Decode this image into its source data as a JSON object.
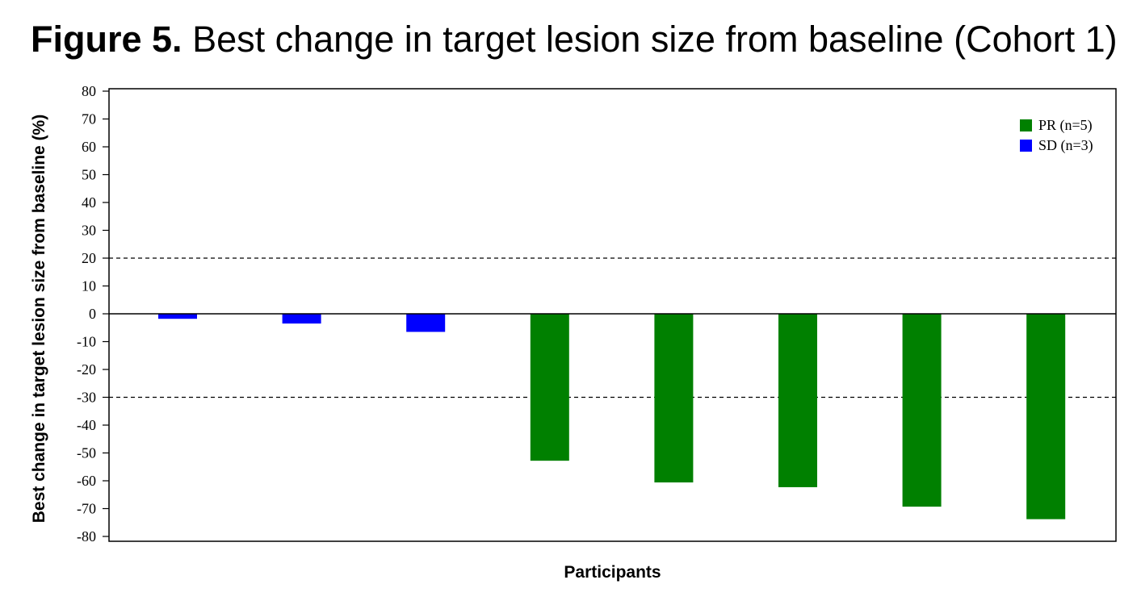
{
  "figure": {
    "label": "Figure 5.",
    "title": "Best change in target lesion size from baseline (Cohort 1)"
  },
  "chart_data": {
    "type": "bar",
    "title": "Best change in target lesion size from baseline (Cohort 1)",
    "xlabel": "Participants",
    "ylabel": "Best change in target lesion size from baseline (%)",
    "ylim": [
      -80,
      80
    ],
    "yticks": [
      80,
      70,
      60,
      50,
      40,
      30,
      20,
      10,
      0,
      -10,
      -20,
      -30,
      -40,
      -50,
      -60,
      -70,
      -80
    ],
    "reference_lines": [
      20,
      -30
    ],
    "grid": false,
    "legend_position": "top-right",
    "series": [
      {
        "name": "PR (n=5)",
        "color": "#008000"
      },
      {
        "name": "SD (n=3)",
        "color": "#0000ff"
      }
    ],
    "bars": [
      {
        "value": -1.8,
        "series": "SD (n=3)"
      },
      {
        "value": -3.5,
        "series": "SD (n=3)"
      },
      {
        "value": -6.5,
        "series": "SD (n=3)"
      },
      {
        "value": -52.8,
        "series": "PR (n=5)"
      },
      {
        "value": -60.6,
        "series": "PR (n=5)"
      },
      {
        "value": -62.3,
        "series": "PR (n=5)"
      },
      {
        "value": -69.3,
        "series": "PR (n=5)"
      },
      {
        "value": -73.8,
        "series": "PR (n=5)"
      }
    ]
  }
}
